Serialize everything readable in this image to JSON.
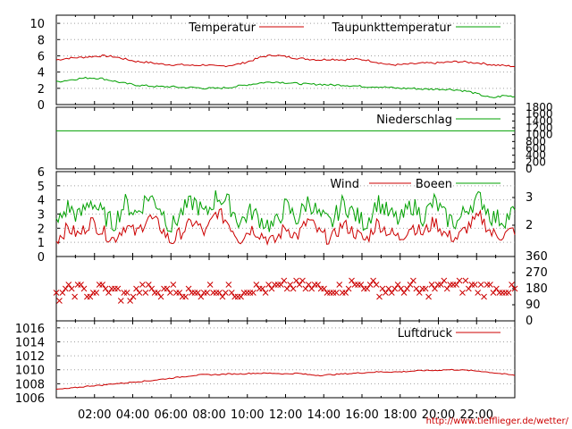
{
  "chart_data": {
    "type": "line",
    "x_ticks": [
      "02:00",
      "04:00",
      "06:00",
      "08:00",
      "10:00",
      "12:00",
      "14:00",
      "16:00",
      "18:00",
      "20:00",
      "22:00"
    ],
    "footer_url": "http://www.tiefflieger.de/wetter/",
    "colors": {
      "red": "#cc0000",
      "green": "#00a000",
      "grid": "#a0a0a0"
    },
    "panels": [
      {
        "id": "temperature",
        "ylim": [
          0,
          11
        ],
        "y_ticks": [
          0,
          2,
          4,
          6,
          8,
          10
        ],
        "series": [
          {
            "name": "Temperatur",
            "color": "#cc0000",
            "values": [
              5.5,
              5.7,
              5.8,
              5.9,
              6.0,
              5.9,
              5.6,
              5.3,
              5.2,
              5.0,
              4.9,
              4.9,
              4.8,
              4.9,
              4.7,
              4.8,
              5.0,
              5.4,
              5.9,
              6.1,
              5.9,
              5.7,
              5.6,
              5.5,
              5.6,
              5.5,
              5.6,
              5.5,
              5.2,
              4.9,
              4.9,
              5.0,
              5.1,
              5.1,
              5.2,
              5.3,
              5.2,
              5.1,
              4.9,
              4.8,
              4.7
            ]
          },
          {
            "name": "Taupunkttemperatur",
            "color": "#00a000",
            "values": [
              2.8,
              3.0,
              3.2,
              3.3,
              3.2,
              2.9,
              2.6,
              2.4,
              2.3,
              2.2,
              2.2,
              2.1,
              2.1,
              2.0,
              2.0,
              2.1,
              2.3,
              2.5,
              2.7,
              2.8,
              2.7,
              2.6,
              2.5,
              2.5,
              2.4,
              2.4,
              2.3,
              2.2,
              2.2,
              2.1,
              2.0,
              2.0,
              1.9,
              1.9,
              1.9,
              1.8,
              1.6,
              1.2,
              0.8,
              1.1,
              1.0
            ]
          }
        ]
      },
      {
        "id": "precipitation",
        "ylim": [
          0,
          1800
        ],
        "y_ticks": [
          0,
          200,
          400,
          600,
          800,
          1000,
          1200,
          1400,
          1600,
          1800
        ],
        "series": [
          {
            "name": "Niederschlag",
            "color": "#00a000",
            "values": [
              1110,
              1110
            ]
          }
        ]
      },
      {
        "id": "wind",
        "ylim": [
          0,
          6
        ],
        "y_ticks": [
          0,
          1,
          2,
          3,
          4,
          5,
          6
        ],
        "right_ticks": [
          2,
          3
        ],
        "series": [
          {
            "name": "Wind",
            "color": "#cc0000",
            "values": [
              1.2,
              2.0,
              1.5,
              2.5,
              1.8,
              1.2,
              2.2,
              1.6,
              2.8,
              2.2,
              1.0,
              1.8,
              2.5,
              1.6,
              3.2,
              2.4,
              1.2,
              2.0,
              1.5,
              1.0,
              2.1,
              1.4,
              2.6,
              1.6,
              1.2,
              2.3,
              1.7,
              1.1,
              2.4,
              1.7,
              1.3,
              2.2,
              1.6,
              2.5,
              1.5,
              1.3,
              2.2,
              2.8,
              1.6,
              1.5,
              1.9
            ]
          },
          {
            "name": "Boeen",
            "color": "#00a000",
            "values": [
              2.2,
              3.5,
              2.8,
              4.0,
              3.0,
              2.3,
              3.8,
              3.0,
              4.3,
              3.6,
              2.0,
              3.2,
              3.9,
              2.9,
              4.3,
              3.8,
              2.4,
              3.2,
              2.5,
              2.1,
              3.6,
              2.6,
              4.0,
              2.8,
              2.3,
              3.8,
              3.0,
              2.3,
              3.9,
              3.0,
              2.5,
              3.7,
              2.8,
              3.9,
              2.7,
              2.4,
              3.6,
              4.1,
              2.8,
              2.6,
              3.2
            ]
          }
        ]
      },
      {
        "id": "wind_direction",
        "ylim": [
          0,
          360
        ],
        "right_ticks": [
          0,
          90,
          180,
          270,
          360
        ],
        "color": "#cc0000",
        "values": [
          130,
          170,
          180,
          150,
          180,
          170,
          130,
          160,
          180,
          150,
          180,
          160,
          150,
          180,
          180,
          160,
          170,
          180,
          180,
          180,
          190,
          200,
          180,
          180,
          180,
          190,
          200,
          200,
          180,
          170,
          180,
          190,
          160,
          180,
          200,
          190,
          200,
          180,
          180,
          180,
          170
        ]
      },
      {
        "id": "pressure",
        "ylim": [
          1006,
          1017
        ],
        "y_ticks": [
          1006,
          1008,
          1010,
          1012,
          1014,
          1016
        ],
        "series": [
          {
            "name": "Luftdruck",
            "color": "#cc0000",
            "values": [
              1007.2,
              1007.3,
              1007.5,
              1007.7,
              1007.8,
              1008.0,
              1008.1,
              1008.3,
              1008.4,
              1008.6,
              1008.8,
              1009.0,
              1009.2,
              1009.3,
              1009.3,
              1009.4,
              1009.4,
              1009.5,
              1009.5,
              1009.5,
              1009.4,
              1009.5,
              1009.3,
              1009.2,
              1009.3,
              1009.4,
              1009.5,
              1009.6,
              1009.7,
              1009.7,
              1009.7,
              1009.8,
              1009.9,
              1009.9,
              1010.0,
              1010.0,
              1009.9,
              1009.8,
              1009.6,
              1009.4,
              1009.2
            ]
          }
        ]
      }
    ]
  }
}
